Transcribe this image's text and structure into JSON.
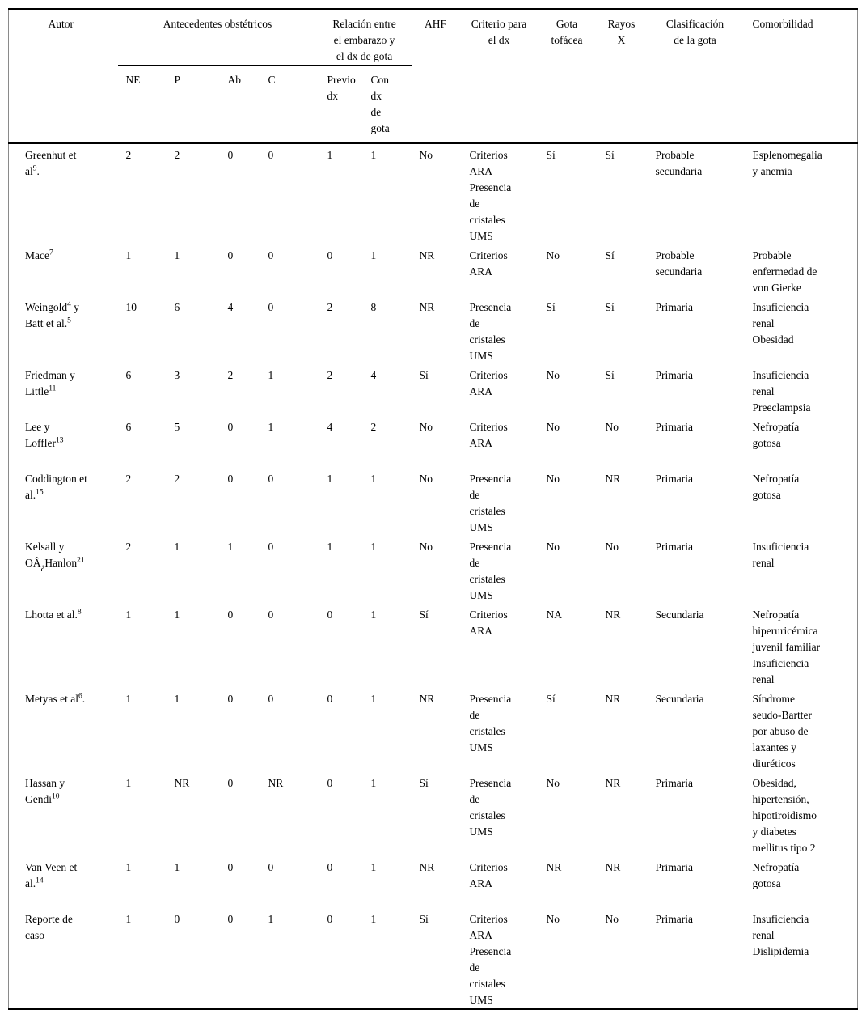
{
  "document": {
    "language": "es",
    "kind": "tabla de revisión de casos de gota"
  },
  "table": {
    "headers": {
      "autor": "Autor",
      "antecedentes_obstetricos": "Antecedentes obstétricos",
      "relacion_embarazo_dx": "Relación entre\nel embarazo y\nel dx de gota",
      "sub": {
        "ne": "NE",
        "p": "P",
        "ab": "Ab",
        "c": "C",
        "previo_dx": "Previo\ndx",
        "con_dx": "Con\ndx\nde\ngota"
      },
      "ahf": "AHF",
      "criterio": "Criterio para\nel dx",
      "gota_tofacea": "Gota\ntofácea",
      "rayos_x": "Rayos\nX",
      "clasificacion": "Clasificación\nde la gota",
      "comorbilidad": "Comorbilidad"
    },
    "rows": [
      {
        "autor": [
          {
            "t": "Greenhut et"
          },
          {
            "br": true
          },
          {
            "t": "al"
          },
          {
            "t": "9",
            "sup": true
          },
          {
            "t": "."
          }
        ],
        "values": [
          "2",
          "2",
          "0",
          "0",
          "1",
          "1",
          "No",
          "Criterios\nARA\nPresencia\nde\ncristales\nUMS",
          "Sí",
          "Sí",
          "Probable\nsecundaria",
          "Esplenomegalia\ny anemia"
        ]
      },
      {
        "autor": [
          {
            "t": "Mace"
          },
          {
            "t": "7",
            "sup": true
          }
        ],
        "values": [
          "1",
          "1",
          "0",
          "0",
          "0",
          "1",
          "NR",
          "Criterios\nARA",
          "No",
          "Sí",
          "Probable\nsecundaria",
          "Probable\nenfermedad de\nvon Gierke"
        ]
      },
      {
        "autor": [
          {
            "t": "Weingold"
          },
          {
            "t": "4",
            "sup": true
          },
          {
            "t": " y"
          },
          {
            "br": true
          },
          {
            "t": "Batt et al."
          },
          {
            "t": "5",
            "sup": true
          }
        ],
        "values": [
          "10",
          "6",
          "4",
          "0",
          "2",
          "8",
          "NR",
          "Presencia\nde\ncristales\nUMS",
          "Sí",
          "Sí",
          "Primaria",
          "Insuficiencia\nrenal\nObesidad"
        ]
      },
      {
        "autor": [
          {
            "t": "Friedman y"
          },
          {
            "br": true
          },
          {
            "t": "Little"
          },
          {
            "t": "11",
            "sup": true
          }
        ],
        "values": [
          "6",
          "3",
          "2",
          "1",
          "2",
          "4",
          "Sí",
          "Criterios\nARA",
          "No",
          "Sí",
          "Primaria",
          "Insuficiencia\nrenal\nPreeclampsia"
        ]
      },
      {
        "autor": [
          {
            "t": "Lee y"
          },
          {
            "br": true
          },
          {
            "t": "Loffler"
          },
          {
            "t": "13",
            "sup": true
          }
        ],
        "values": [
          "6",
          "5",
          "0",
          "1",
          "4",
          "2",
          "No",
          "Criterios\nARA",
          "No",
          "No",
          "Primaria",
          "Nefropatía\ngotosa"
        ]
      },
      {
        "autor": [
          {
            "t": "Coddington et"
          },
          {
            "br": true
          },
          {
            "t": "al."
          },
          {
            "t": "15",
            "sup": true
          }
        ],
        "values": [
          "2",
          "2",
          "0",
          "0",
          "1",
          "1",
          "No",
          "Presencia\nde\ncristales\nUMS",
          "No",
          "NR",
          "Primaria",
          "Nefropatía\ngotosa"
        ]
      },
      {
        "autor": [
          {
            "t": "Kelsall y"
          },
          {
            "br": true
          },
          {
            "t": "OÂ"
          },
          {
            "t": "¿",
            "sub": true
          },
          {
            "t": "Hanlon"
          },
          {
            "t": "21",
            "sup": true
          }
        ],
        "values": [
          "2",
          "1",
          "1",
          "0",
          "1",
          "1",
          "No",
          "Presencia\nde\ncristales\nUMS",
          "No",
          "No",
          "Primaria",
          "Insuficiencia\nrenal"
        ]
      },
      {
        "autor": [
          {
            "t": "Lhotta et al."
          },
          {
            "t": "8",
            "sup": true
          }
        ],
        "values": [
          "1",
          "1",
          "0",
          "0",
          "0",
          "1",
          "Sí",
          "Criterios\nARA",
          "NA",
          "NR",
          "Secundaria",
          "Nefropatía\nhiperuricémica\njuvenil familiar\nInsuficiencia\nrenal"
        ]
      },
      {
        "autor": [
          {
            "t": "Metyas et al"
          },
          {
            "t": "6",
            "sup": true
          },
          {
            "t": "."
          }
        ],
        "values": [
          "1",
          "1",
          "0",
          "0",
          "0",
          "1",
          "NR",
          "Presencia\nde\ncristales\nUMS",
          "Sí",
          "NR",
          "Secundaria",
          "Síndrome\nseudo-Bartter\npor abuso de\nlaxantes y\ndiuréticos"
        ]
      },
      {
        "autor": [
          {
            "t": "Hassan y"
          },
          {
            "br": true
          },
          {
            "t": "Gendi"
          },
          {
            "t": "10",
            "sup": true
          }
        ],
        "values": [
          "1",
          "NR",
          "0",
          "NR",
          "0",
          "1",
          "Sí",
          "Presencia\nde\ncristales\nUMS",
          "No",
          "NR",
          "Primaria",
          "Obesidad,\nhipertensión,\nhipotiroidismo\ny diabetes\nmellitus tipo 2"
        ]
      },
      {
        "autor": [
          {
            "t": "Van Veen et"
          },
          {
            "br": true
          },
          {
            "t": "al."
          },
          {
            "t": "14",
            "sup": true
          }
        ],
        "values": [
          "1",
          "1",
          "0",
          "0",
          "0",
          "1",
          "NR",
          "Criterios\nARA",
          "NR",
          "NR",
          "Primaria",
          "Nefropatía\ngotosa"
        ]
      },
      {
        "autor": [
          {
            "t": "Reporte de"
          },
          {
            "br": true
          },
          {
            "t": "caso"
          }
        ],
        "values": [
          "1",
          "0",
          "0",
          "1",
          "0",
          "1",
          "Sí",
          "Criterios\nARA\nPresencia\nde\ncristales\nUMS",
          "No",
          "No",
          "Primaria",
          "Insuficiencia\nrenal\nDislipidemia"
        ]
      }
    ]
  }
}
